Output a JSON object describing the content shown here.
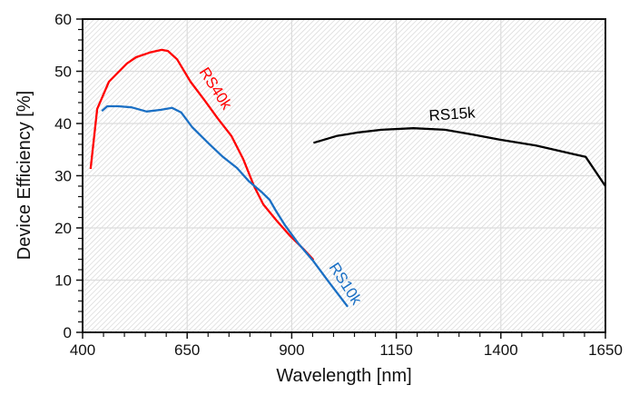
{
  "chart_data": {
    "type": "line",
    "title": "",
    "xlabel": "Wavelength [nm]",
    "ylabel": "Device Efficiency [%]",
    "xlim": [
      400,
      1650
    ],
    "ylim": [
      0,
      60
    ],
    "xticks": [
      400,
      650,
      900,
      1150,
      1400,
      1650
    ],
    "yticks": [
      0,
      10,
      20,
      30,
      40,
      50,
      60
    ],
    "grid": true,
    "background": "diagonal hatch",
    "series": [
      {
        "name": "RS40k",
        "color": "#ff0000",
        "x": [
          419,
          435,
          463,
          506,
          528,
          561,
          589,
          604,
          626,
          658,
          691,
          723,
          756,
          784,
          810,
          832,
          864,
          897,
          930,
          952
        ],
        "y": [
          31.3,
          42.8,
          48,
          51.5,
          52.7,
          53.6,
          54.1,
          53.9,
          52.3,
          48,
          44.5,
          41,
          37.6,
          33.2,
          28,
          24.5,
          21.4,
          18.4,
          15.8,
          13.9
        ]
      },
      {
        "name": "RS10k",
        "color": "#1a6fc4",
        "x": [
          446,
          459,
          485,
          517,
          553,
          586,
          614,
          636,
          662,
          701,
          734,
          769,
          798,
          829,
          847,
          862,
          884,
          916,
          952,
          988,
          1034
        ],
        "y": [
          42.4,
          43.3,
          43.3,
          43.1,
          42.3,
          42.6,
          43,
          42.1,
          39.3,
          36.2,
          33.7,
          31.5,
          28.9,
          26.8,
          25.4,
          23.3,
          20.5,
          17,
          13.6,
          9.7,
          4.9
        ]
      },
      {
        "name": "RS15k",
        "color": "#000000",
        "x": [
          952,
          1007,
          1060,
          1115,
          1191,
          1266,
          1332,
          1397,
          1484,
          1549,
          1603,
          1650
        ],
        "y": [
          36.3,
          37.6,
          38.3,
          38.8,
          39.1,
          38.8,
          37.9,
          36.9,
          35.8,
          34.6,
          33.6,
          28
        ]
      }
    ]
  }
}
